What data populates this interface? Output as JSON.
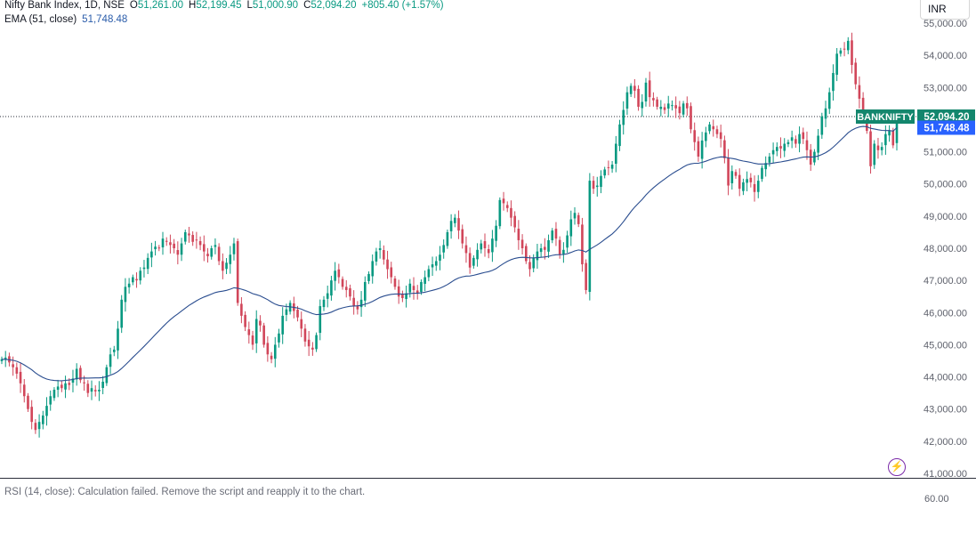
{
  "legend": {
    "title": "Nifty Bank Index, 1D, NSE",
    "open_key": "O",
    "open": "51,261.00",
    "high_key": "H",
    "high": "52,199.45",
    "low_key": "L",
    "low": "51,000.90",
    "close_key": "C",
    "close": "52,094.20",
    "change": "+805.40 (+1.57%)",
    "ema_label": "EMA (51, close)",
    "ema_value": "51,748.48"
  },
  "currency": "INR",
  "rsi": {
    "legend": "RSI (14, close): Calculation failed. Remove the script and reapply it to the chart.",
    "tick": "60.00"
  },
  "icons": {
    "alert": "lightning-alert-icon"
  },
  "colors": {
    "up": "#089981",
    "down": "#d1465a",
    "ema": "#2a4d8f",
    "price_label": "#13866d",
    "ema_label": "#2962ff"
  },
  "chart_data": {
    "type": "candlestick",
    "symbol": "BANKNIFTY",
    "interval": "1D",
    "last_price_label": "52,094.20",
    "ema_label": "51,748.48",
    "y_axis": {
      "ticks": [
        41000,
        42000,
        43000,
        44000,
        45000,
        46000,
        47000,
        48000,
        49000,
        50000,
        51000,
        52000,
        53000,
        54000,
        55000
      ],
      "tick_labels": [
        "41,000.00",
        "42,000.00",
        "43,000.00",
        "44,000.00",
        "45,000.00",
        "46,000.00",
        "47,000.00",
        "48,000.00",
        "49,000.00",
        "50,000.00",
        "51,000.00",
        "52,000.00",
        "53,000.00",
        "54,000.00",
        "55,000.00"
      ],
      "range": [
        40970,
        55100
      ]
    },
    "close": [
      44550,
      44600,
      44450,
      44300,
      44100,
      43800,
      43400,
      43000,
      42600,
      42350,
      42600,
      42800,
      43100,
      43400,
      43600,
      43700,
      43650,
      43800,
      43750,
      43950,
      44250,
      43900,
      43800,
      43500,
      43650,
      43550,
      43600,
      43850,
      44300,
      44700,
      44850,
      45500,
      46400,
      46800,
      46900,
      47100,
      47000,
      47300,
      47400,
      47700,
      47900,
      48050,
      48000,
      48300,
      48200,
      48100,
      48000,
      47800,
      48150,
      48500,
      48400,
      48200,
      48250,
      48100,
      47900,
      47750,
      48000,
      48100,
      47600,
      47300,
      47550,
      47800,
      48150,
      46300,
      45900,
      45550,
      45300,
      45000,
      45800,
      45600,
      45000,
      44700,
      44550,
      45000,
      45350,
      45900,
      46100,
      46300,
      46050,
      45850,
      45500,
      45100,
      44950,
      44850,
      45300,
      46200,
      46400,
      46600,
      47000,
      47300,
      47100,
      46800,
      46700,
      46500,
      46200,
      46100,
      46400,
      46950,
      47200,
      47600,
      47900,
      48000,
      47650,
      47350,
      47100,
      46800,
      46500,
      46450,
      46600,
      46900,
      46700,
      46600,
      46950,
      47100,
      47350,
      47500,
      47600,
      47800,
      48100,
      48500,
      48850,
      48950,
      48550,
      48150,
      47850,
      47400,
      47700,
      47950,
      48150,
      48000,
      47850,
      48300,
      48700,
      49500,
      49400,
      49250,
      48950,
      48650,
      48250,
      48000,
      47600,
      47350,
      47700,
      47900,
      48000,
      47950,
      48250,
      48550,
      48300,
      47800,
      47950,
      48400,
      48900,
      49100,
      48750,
      47500,
      46700,
      50100,
      49850,
      49950,
      50250,
      50450,
      50500,
      50600,
      51250,
      51850,
      52300,
      52850,
      53050,
      52900,
      52400,
      52550,
      53150,
      52700,
      52600,
      52400,
      52400,
      52300,
      52500,
      52450,
      52350,
      52200,
      52500,
      52350,
      51700,
      51300,
      50850,
      51350,
      51600,
      51850,
      51700,
      51550,
      51400,
      50800,
      49950,
      50400,
      50250,
      49850,
      50050,
      50150,
      50050,
      49750,
      50100,
      50500,
      50650,
      50850,
      51050,
      51150,
      51100,
      51250,
      51300,
      51450,
      51250,
      51550,
      51400,
      51050,
      50600,
      51000,
      51500,
      52100,
      52350,
      52850,
      53450,
      54050,
      54150,
      54200,
      54450,
      53700,
      53100,
      52650,
      52150,
      51650,
      50550,
      51250,
      51050,
      51150,
      51550,
      51650,
      51200,
      52094.2
    ],
    "ema51": [
      44550,
      44545,
      44533,
      44517,
      44485,
      44436,
      44374,
      44299,
      44221,
      44124,
      44046,
      43982,
      43934,
      43906,
      43888,
      43884,
      43880,
      43891,
      43901,
      43919,
      43949,
      43961,
      43966,
      43962,
      43967,
      43968,
      43969,
      43980,
      44011,
      44055,
      44098,
      44164,
      44263,
      44374,
      44486,
      44606,
      44718,
      44833,
      44948,
      45069,
      45193,
      45317,
      45434,
      45558,
      45672,
      45778,
      45876,
      45958,
      46046,
      46139,
      46224,
      46296,
      46367,
      46430,
      46483,
      46527,
      46576,
      46621,
      46649,
      46666,
      46692,
      46726,
      46771,
      46757,
      46728,
      46691,
      46645,
      46589,
      46557,
      46520,
      46463,
      46400,
      46325,
      46263,
      46222,
      46203,
      46187,
      46179,
      46163,
      46141,
      46107,
      46057,
      46012,
      45966,
      45935,
      45943,
      45956,
      45975,
      46014,
      46067,
      46114,
      46147,
      46175,
      46197,
      46205,
      46210,
      46224,
      46259,
      46296,
      46348,
      46408,
      46469,
      46512,
      46543,
      46566,
      46577,
      46577,
      46576,
      46579,
      46593,
      46599,
      46600,
      46614,
      46633,
      46661,
      46690,
      46721,
      46759,
      46809,
      46872,
      46946,
      47020,
      47076,
      47112,
      47134,
      47138,
      47160,
      47189,
      47221,
      47250,
      47273,
      47312,
      47366,
      47449,
      47524,
      47591,
      47645,
      47685,
      47708,
      47719,
      47716,
      47701,
      47701,
      47708,
      47719,
      47728,
      47748,
      47779,
      47799,
      47800,
      47806,
      47829,
      47870,
      47916,
      47947,
      47931,
      47884,
      47966,
      48035,
      48106,
      48186,
      48273,
      48359,
      48446,
      48555,
      48684,
      48825,
      48981,
      49138,
      49282,
      49400,
      49519,
      49657,
      49773,
      49880,
      49975,
      50066,
      50149,
      50236,
      50317,
      50391,
      50455,
      50528,
      50590,
      50624,
      50641,
      50641,
      50669,
      50706,
      50751,
      50788,
      50818,
      50841,
      50839,
      50807,
      50792,
      50772,
      50737,
      50712,
      50693,
      50671,
      50640,
      50621,
      50621,
      50622,
      50631,
      50647,
      50667,
      50684,
      50706,
      50729,
      50757,
      50777,
      50808,
      50832,
      50842,
      50835,
      50842,
      50868,
      50916,
      50972,
      51045,
      51139,
      51252,
      51365,
      51475,
      51592,
      51675,
      51732,
      51770,
      51787,
      51780,
      51729,
      51711,
      51686,
      51666,
      51661,
      51661,
      51643,
      51748.48
    ]
  }
}
